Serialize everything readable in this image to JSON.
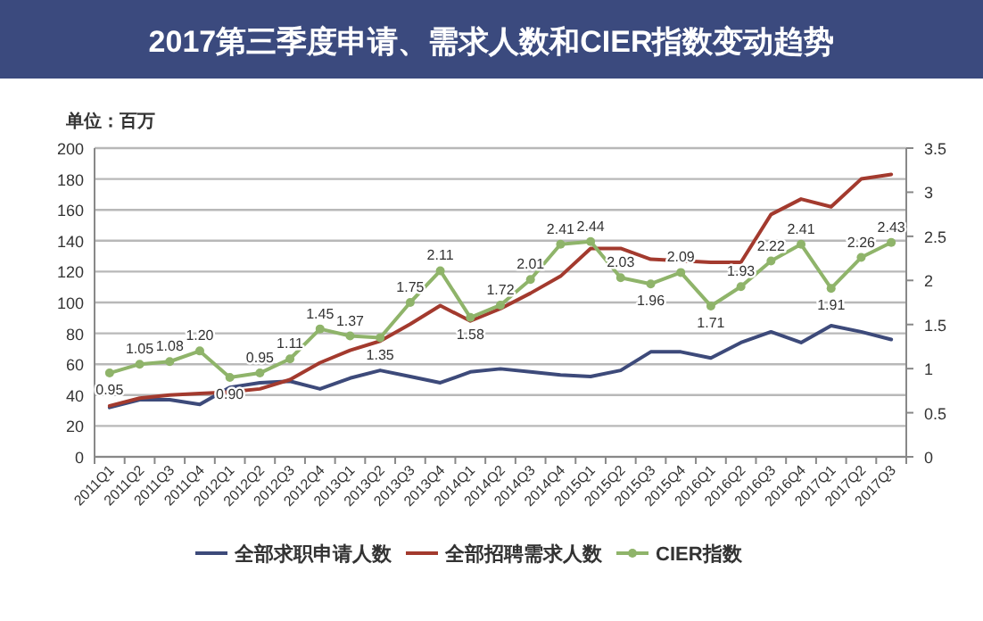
{
  "chart_data": {
    "type": "line",
    "title": "2017第三季度申请、需求人数和CIER指数变动趋势",
    "ylabel": "单位：百万",
    "categories": [
      "2011Q1",
      "2011Q2",
      "2011Q3",
      "2011Q4",
      "2012Q1",
      "2012Q2",
      "2012Q3",
      "2012Q4",
      "2013Q1",
      "2013Q2",
      "2013Q3",
      "2013Q4",
      "2014Q1",
      "2014Q2",
      "2014Q3",
      "2014Q4",
      "2015Q1",
      "2015Q2",
      "2015Q3",
      "2015Q4",
      "2016Q1",
      "2016Q2",
      "2016Q3",
      "2016Q4",
      "2017Q1",
      "2017Q2",
      "2017Q3"
    ],
    "series": [
      {
        "name": "全部求职申请人数",
        "color": "#3d4a7a",
        "values": [
          32,
          37,
          37,
          34,
          45,
          48,
          49,
          44,
          51,
          56,
          52,
          48,
          55,
          57,
          55,
          53,
          52,
          56,
          68,
          68,
          64,
          74,
          81,
          74,
          85,
          81,
          76
        ]
      },
      {
        "name": "全部招聘需求人数",
        "color": "#a33a2e",
        "values": [
          33,
          38,
          40,
          41,
          42,
          44,
          50,
          61,
          69,
          75,
          86,
          98,
          88,
          96,
          106,
          117,
          135,
          135,
          128,
          127,
          126,
          126,
          157,
          167,
          162,
          180,
          183
        ]
      },
      {
        "name": "CIER指数",
        "color": "#8fb46a",
        "axis": "y2",
        "marker": "circle",
        "values": [
          0.95,
          1.05,
          1.08,
          1.2,
          0.9,
          0.95,
          1.11,
          1.45,
          1.37,
          1.35,
          1.75,
          2.11,
          1.58,
          1.72,
          2.01,
          2.41,
          2.44,
          2.03,
          1.96,
          2.09,
          1.71,
          1.93,
          2.22,
          2.41,
          1.91,
          2.26,
          2.43
        ],
        "value_labels": [
          "0.95",
          "1.05",
          "1.08",
          "1.20",
          "0.90",
          "0.95",
          "1.11",
          "1.45",
          "1.37",
          "1.35",
          "1.75",
          "2.11",
          "1.58",
          "1.72",
          "2.01",
          "2.41",
          "2.44",
          "2.03",
          "1.96",
          "2.09",
          "1.71",
          "1.93",
          "2.22",
          "2.41",
          "1.91",
          "2.26",
          "2.43"
        ]
      }
    ],
    "ylim": [
      0,
      200
    ],
    "yticks": [
      0,
      20,
      40,
      60,
      80,
      100,
      120,
      140,
      160,
      180,
      200
    ],
    "y2lim": [
      0,
      3.5
    ],
    "y2ticks": [
      0,
      0.5,
      1,
      1.5,
      2,
      2.5,
      3,
      3.5
    ],
    "grid": "y",
    "legend": "bottom",
    "line_style": "solid"
  }
}
